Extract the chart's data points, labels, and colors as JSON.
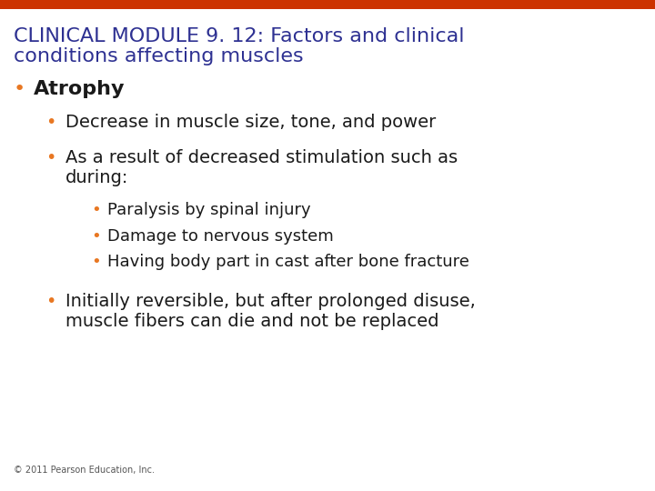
{
  "title_line1": "CLINICAL MODULE 9. 12: Factors and clinical",
  "title_line2": "conditions affecting muscles",
  "title_color": "#2E3192",
  "background_color": "#FFFFFF",
  "top_bar_color": "#CC3300",
  "orange_bullet_color": "#E87722",
  "bullet_main": "Atrophy",
  "bullet_main_color": "#1a1a1a",
  "sub_bullets": [
    "Decrease in muscle size, tone, and power",
    "As a result of decreased stimulation such as\nduring:",
    "Initially reversible, but after prolonged disuse,\nmuscle fibers can die and not be replaced"
  ],
  "sub_sub_bullets": [
    "Paralysis by spinal injury",
    "Damage to nervous system",
    "Having body part in cast after bone fracture"
  ],
  "footer": "© 2011 Pearson Education, Inc.",
  "footer_color": "#555555",
  "title_fontsize": 16,
  "main_bullet_fontsize": 16,
  "sub_bullet_fontsize": 14,
  "sub_sub_bullet_fontsize": 13,
  "footer_fontsize": 7
}
